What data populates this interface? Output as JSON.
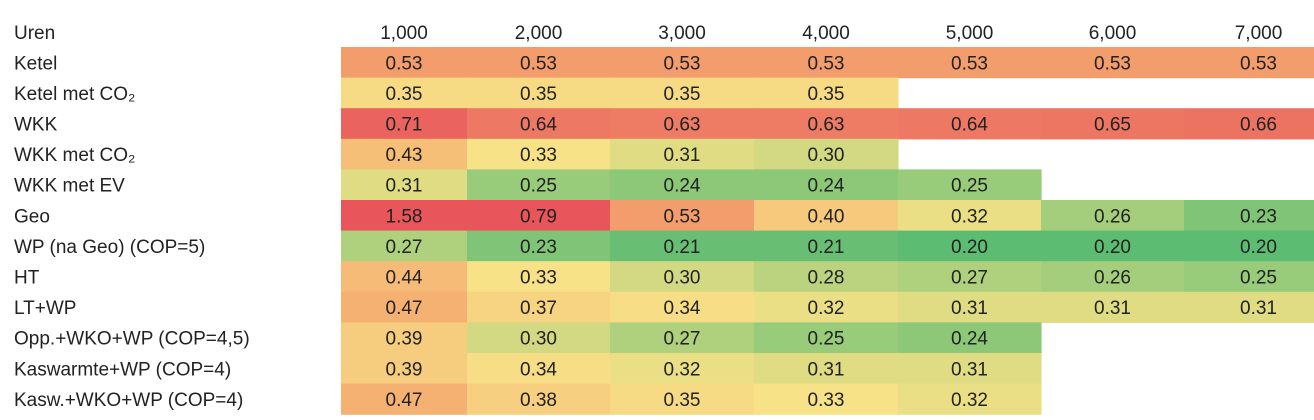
{
  "chart_data": {
    "type": "heatmap",
    "corner_label": "Uren",
    "columns": [
      "1,000",
      "2,000",
      "3,000",
      "4,000",
      "5,000",
      "6,000",
      "7,000"
    ],
    "rows": [
      {
        "label": "Ketel",
        "values": [
          0.53,
          0.53,
          0.53,
          0.53,
          0.53,
          0.53,
          0.53
        ]
      },
      {
        "label": "Ketel met CO₂",
        "values": [
          0.35,
          0.35,
          0.35,
          0.35,
          null,
          null,
          null
        ]
      },
      {
        "label": "WKK",
        "values": [
          0.71,
          0.64,
          0.63,
          0.63,
          0.64,
          0.65,
          0.66
        ]
      },
      {
        "label": "WKK met CO₂",
        "values": [
          0.43,
          0.33,
          0.31,
          0.3,
          null,
          null,
          null
        ]
      },
      {
        "label": "WKK met EV",
        "values": [
          0.31,
          0.25,
          0.24,
          0.24,
          0.25,
          null,
          null
        ]
      },
      {
        "label": "Geo",
        "values": [
          1.58,
          0.79,
          0.53,
          0.4,
          0.32,
          0.26,
          0.23
        ]
      },
      {
        "label": "WP (na Geo)  (COP=5)",
        "values": [
          0.27,
          0.23,
          0.21,
          0.21,
          0.2,
          0.2,
          0.2
        ]
      },
      {
        "label": "HT",
        "values": [
          0.44,
          0.33,
          0.3,
          0.28,
          0.27,
          0.26,
          0.25
        ]
      },
      {
        "label": "LT+WP",
        "values": [
          0.47,
          0.37,
          0.34,
          0.32,
          0.31,
          0.31,
          0.31
        ]
      },
      {
        "label": "Opp.+WKO+WP  (COP=4,5)",
        "values": [
          0.39,
          0.3,
          0.27,
          0.25,
          0.24,
          null,
          null
        ]
      },
      {
        "label": "Kaswarmte+WP (COP=4)",
        "values": [
          0.39,
          0.34,
          0.32,
          0.31,
          0.31,
          null,
          null
        ]
      },
      {
        "label": "Kasw.+WKO+WP (COP=4)",
        "values": [
          0.47,
          0.38,
          0.35,
          0.33,
          0.32,
          null,
          null
        ]
      }
    ],
    "colors": {
      "green": "#5cbc72",
      "yellow": "#f7e287",
      "orange": "#f4a66e",
      "red": "#e8565c"
    }
  }
}
